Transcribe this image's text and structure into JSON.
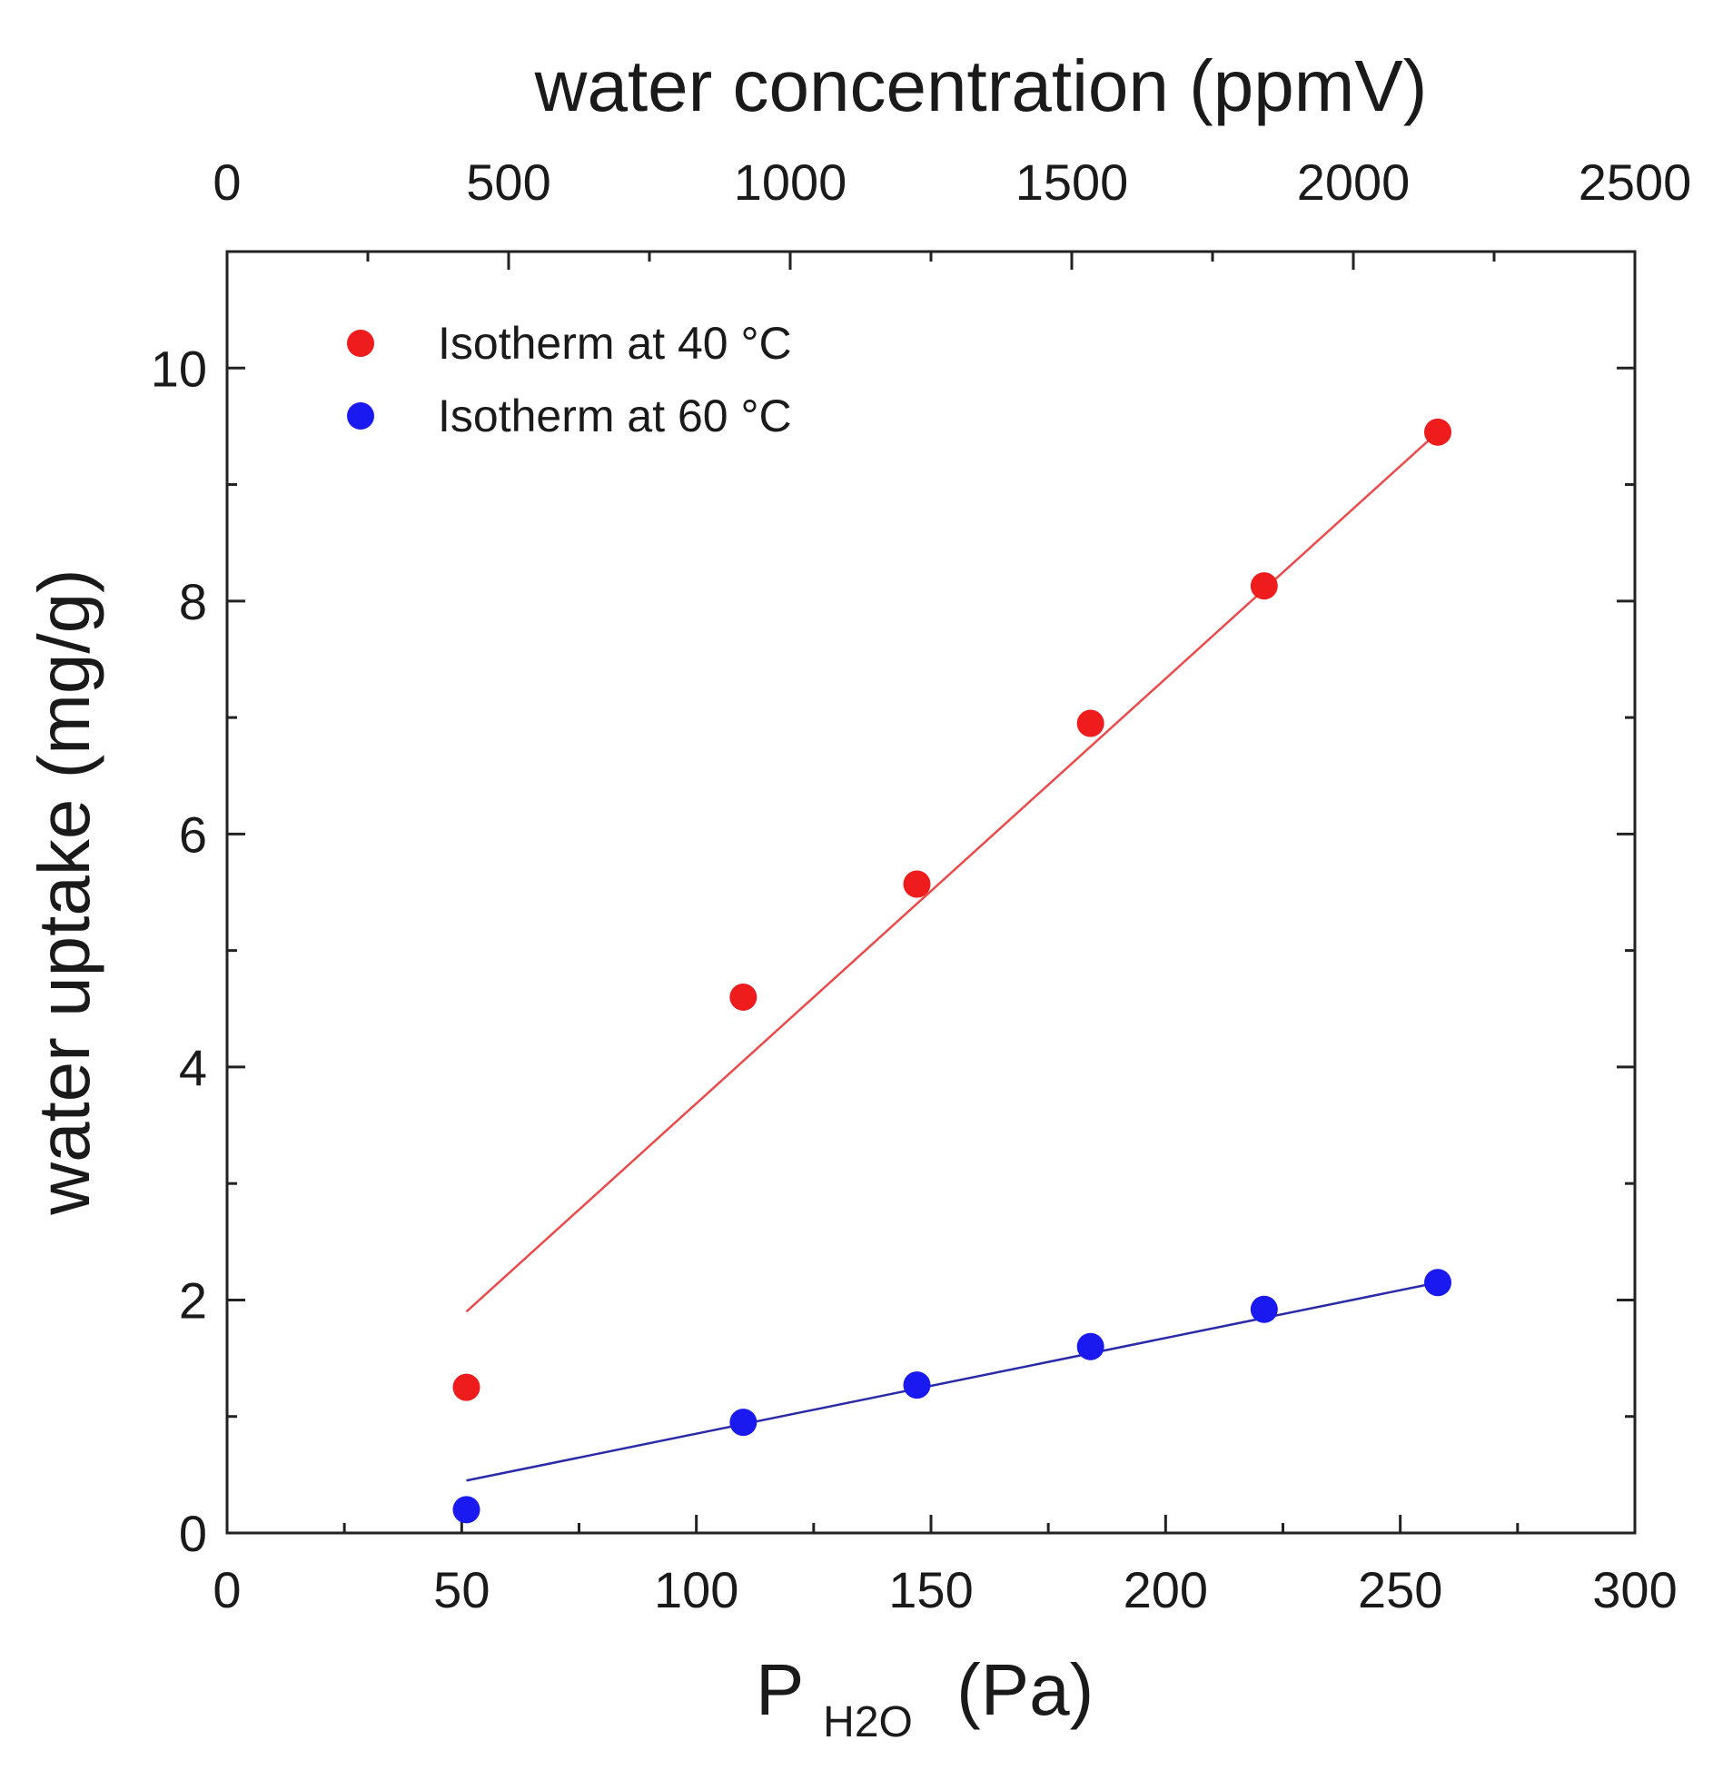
{
  "chart_data": {
    "type": "scatter",
    "xlabel_main": "P",
    "xlabel_sub": "H2O",
    "xlabel_unit": "(Pa)",
    "ylabel": "water uptake (mg/g)",
    "top_xlabel": "water concentration (ppmV)",
    "xlim": [
      0,
      300
    ],
    "ylim": [
      0,
      11
    ],
    "top_xlim": [
      0,
      2500
    ],
    "x_ticks": [
      0,
      50,
      100,
      150,
      200,
      250,
      300
    ],
    "x_tick_labels": [
      "0",
      "50",
      "100",
      "150",
      "200",
      "250",
      "300"
    ],
    "x_minor_ticks": [
      25,
      75,
      125,
      175,
      225,
      275
    ],
    "y_ticks": [
      0,
      2,
      4,
      6,
      8,
      10
    ],
    "y_tick_labels": [
      "0",
      "2",
      "4",
      "6",
      "8",
      "10"
    ],
    "y_minor_ticks": [
      1,
      3,
      5,
      7,
      9
    ],
    "top_ticks": [
      0,
      500,
      1000,
      1500,
      2000,
      2500
    ],
    "top_tick_labels": [
      "0",
      "500",
      "1000",
      "1500",
      "2000",
      "2500"
    ],
    "top_minor_ticks": [
      250,
      750,
      1250,
      1750,
      2250
    ],
    "legend_position": "top-left",
    "series": [
      {
        "name": "Isotherm at 40 °C",
        "color": "#ee1c1c",
        "line_color": "#ea4a4a",
        "x": [
          51,
          110,
          147,
          184,
          221,
          258
        ],
        "y": [
          1.25,
          4.6,
          5.57,
          6.95,
          8.13,
          9.45
        ],
        "fit": {
          "x": [
            51,
            258
          ],
          "y": [
            1.9,
            9.45
          ]
        }
      },
      {
        "name": "Isotherm at 60 °C",
        "color": "#1a1af0",
        "line_color": "#2a2aa8",
        "x": [
          51,
          110,
          147,
          184,
          221,
          258
        ],
        "y": [
          0.2,
          0.95,
          1.27,
          1.6,
          1.92,
          2.15
        ],
        "fit": {
          "x": [
            51,
            258
          ],
          "y": [
            0.45,
            2.15
          ]
        }
      }
    ]
  }
}
